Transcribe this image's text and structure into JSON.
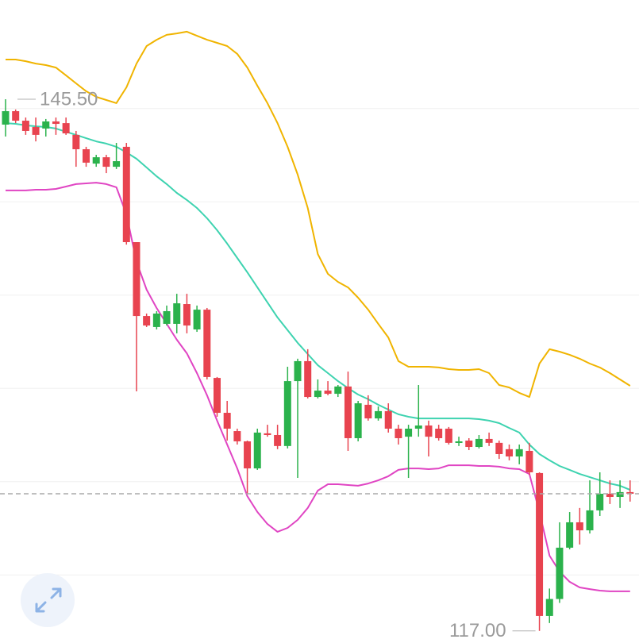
{
  "chart_data": {
    "type": "candlestick",
    "ylim": [
      116.35,
      150.82
    ],
    "grid_levels": [
      120,
      125,
      130,
      135,
      140,
      145
    ],
    "up_color": "#2bb24c",
    "down_color": "#e8434f",
    "open": [
      144.14,
      144.86,
      144.35,
      144.01,
      143.93,
      144.31,
      144.22,
      143.59,
      142.82,
      142.05,
      142.39,
      141.88,
      142.95,
      137.84,
      133.88,
      133.29,
      133.46,
      133.46,
      134.52,
      133.16,
      134.22,
      130.56,
      128.69,
      127.71,
      127.16,
      125.71,
      127.59,
      127.5,
      126.91,
      130.39,
      131.46,
      129.54,
      129.88,
      129.71,
      130.1,
      127.33,
      129.12,
      128.39,
      128.78,
      127.84,
      127.41,
      127.84,
      128.01,
      127.84,
      127.84,
      127.08,
      127.2,
      126.86,
      127.29,
      127.08,
      126.74,
      126.35,
      126.65,
      125.46,
      117.8,
      118.71,
      121.46,
      122.82,
      122.39,
      123.46,
      124.35,
      124.18,
      124.44
    ],
    "high": [
      145.5,
      144.95,
      144.52,
      144.52,
      144.44,
      144.52,
      144.52,
      143.8,
      142.95,
      142.52,
      142.52,
      143.16,
      143.16,
      137.84,
      134.01,
      134.14,
      134.44,
      135.07,
      135.07,
      134.44,
      134.31,
      130.61,
      129.33,
      127.84,
      127.2,
      127.84,
      128.05,
      128.05,
      131.16,
      131.59,
      132.1,
      130.48,
      130.39,
      130.18,
      130.9,
      129.33,
      129.63,
      129.03,
      129.2,
      128.05,
      128.05,
      130.18,
      128.27,
      128.05,
      127.93,
      127.41,
      127.33,
      127.5,
      127.63,
      127.2,
      126.99,
      126.99,
      127.08,
      125.5,
      119.27,
      122.82,
      123.37,
      123.59,
      125.07,
      125.5,
      125.07,
      125.07,
      125.07
    ],
    "low": [
      143.5,
      144.22,
      143.59,
      143.24,
      143.5,
      143.59,
      143.59,
      141.88,
      141.88,
      141.88,
      141.54,
      141.76,
      137.71,
      129.84,
      133.29,
      133.16,
      133.37,
      132.95,
      132.95,
      133.03,
      130.48,
      128.48,
      127.2,
      126.99,
      124.35,
      125.63,
      127.41,
      126.74,
      126.78,
      125.2,
      129.46,
      129.46,
      129.63,
      129.54,
      126.65,
      127.16,
      128.27,
      128.27,
      127.63,
      126.99,
      125.2,
      127.41,
      126.35,
      127.2,
      126.99,
      126.91,
      126.69,
      126.78,
      126.91,
      126.22,
      126.14,
      125.93,
      125.37,
      117.0,
      117.42,
      118.5,
      121.37,
      121.63,
      122.22,
      123.16,
      123.8,
      123.59,
      123.93
    ],
    "close": [
      144.86,
      144.35,
      143.8,
      143.59,
      144.31,
      144.18,
      143.67,
      142.82,
      142.1,
      142.39,
      141.88,
      142.18,
      137.84,
      133.88,
      133.37,
      134.01,
      134.14,
      134.56,
      133.37,
      134.22,
      130.61,
      128.69,
      127.84,
      127.16,
      125.71,
      127.63,
      127.5,
      126.91,
      130.39,
      131.46,
      129.54,
      129.88,
      129.71,
      130.1,
      127.33,
      129.2,
      128.39,
      128.78,
      127.84,
      127.33,
      127.84,
      128.01,
      127.41,
      127.33,
      127.08,
      127.16,
      126.86,
      127.29,
      127.08,
      126.48,
      126.35,
      126.74,
      125.5,
      117.8,
      118.71,
      121.46,
      122.82,
      122.39,
      123.46,
      124.35,
      124.18,
      124.44,
      124.35
    ],
    "lines": [
      {
        "color": "#f0b400",
        "values": [
          147.63,
          147.63,
          147.54,
          147.41,
          147.33,
          147.2,
          146.78,
          146.35,
          145.93,
          145.63,
          145.46,
          145.29,
          146.14,
          147.41,
          148.35,
          148.69,
          148.95,
          149.03,
          149.12,
          148.9,
          148.69,
          148.52,
          148.35,
          147.93,
          147.2,
          146.22,
          145.29,
          144.22,
          142.95,
          141.46,
          139.67,
          137.2,
          136.14,
          135.71,
          135.41,
          134.86,
          134.22,
          133.46,
          132.73,
          131.46,
          131.16,
          131.16,
          131.16,
          131.12,
          131.03,
          130.99,
          130.99,
          131.03,
          130.82,
          130.18,
          130.05,
          129.76,
          129.54,
          131.33,
          132.1,
          131.97,
          131.8,
          131.59,
          131.33,
          131.12,
          130.82,
          130.48,
          130.14
        ]
      },
      {
        "color": "#3ed3b0",
        "values": [
          144.22,
          144.18,
          144.1,
          144.05,
          144.01,
          143.93,
          143.76,
          143.59,
          143.41,
          143.24,
          143.12,
          142.95,
          142.65,
          142.31,
          141.84,
          141.37,
          140.95,
          140.48,
          140.1,
          139.67,
          139.12,
          138.48,
          137.76,
          136.99,
          136.22,
          135.41,
          134.61,
          133.8,
          133.12,
          132.44,
          131.84,
          131.24,
          130.82,
          130.39,
          130.01,
          129.67,
          129.42,
          129.12,
          128.86,
          128.61,
          128.48,
          128.39,
          128.39,
          128.39,
          128.39,
          128.39,
          128.39,
          128.35,
          128.27,
          128.14,
          127.88,
          127.63,
          126.99,
          126.48,
          126.14,
          125.84,
          125.63,
          125.41,
          125.24,
          125.07,
          124.9,
          124.78,
          124.56
        ]
      },
      {
        "color": "#e045c3",
        "values": [
          140.61,
          140.61,
          140.61,
          140.65,
          140.65,
          140.69,
          140.82,
          140.95,
          140.99,
          141.03,
          140.95,
          140.78,
          139.33,
          136.78,
          135.29,
          134.31,
          133.46,
          132.61,
          131.88,
          130.82,
          129.63,
          128.27,
          126.99,
          125.71,
          124.22,
          123.37,
          122.73,
          122.31,
          122.52,
          122.95,
          123.59,
          124.52,
          124.86,
          124.86,
          124.82,
          124.78,
          124.9,
          125.07,
          125.29,
          125.63,
          125.71,
          125.71,
          125.67,
          125.71,
          125.88,
          125.88,
          125.88,
          125.84,
          125.84,
          125.8,
          125.71,
          125.67,
          125.41,
          123.37,
          121.03,
          120.18,
          119.63,
          119.33,
          119.24,
          119.16,
          119.12,
          119.12,
          119.12
        ]
      }
    ],
    "annotations": [
      {
        "label": "145.50",
        "value": 145.5,
        "index": 0,
        "side": "right"
      },
      {
        "label": "117.00",
        "value": 117,
        "index": 53,
        "side": "left"
      }
    ]
  }
}
